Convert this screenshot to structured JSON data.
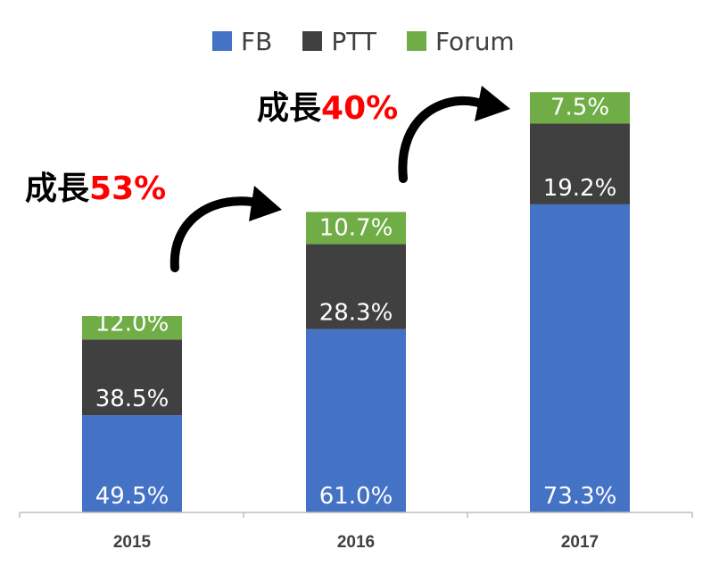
{
  "chart_data": {
    "type": "bar",
    "stacked": true,
    "categories": [
      "2015",
      "2016",
      "2017"
    ],
    "series": [
      {
        "name": "FB",
        "color": "#4472c4",
        "values": [
          49.5,
          61.0,
          73.3
        ],
        "labels": [
          "49.5%",
          "61.0%",
          "73.3%"
        ]
      },
      {
        "name": "PTT",
        "color": "#404040",
        "values": [
          38.5,
          28.3,
          19.2
        ],
        "labels": [
          "38.5%",
          "28.3%",
          "19.2%"
        ]
      },
      {
        "name": "Forum",
        "color": "#70ad47",
        "values": [
          12.0,
          10.7,
          7.5
        ],
        "labels": [
          "12.0%",
          "10.7%",
          "7.5%"
        ]
      }
    ],
    "bar_totals_relative": [
      100,
      153,
      214
    ],
    "legend_position": "top",
    "grid": false,
    "annotations": [
      {
        "prefix": "成長",
        "value": "53%"
      },
      {
        "prefix": "成長",
        "value": "40%"
      }
    ]
  }
}
